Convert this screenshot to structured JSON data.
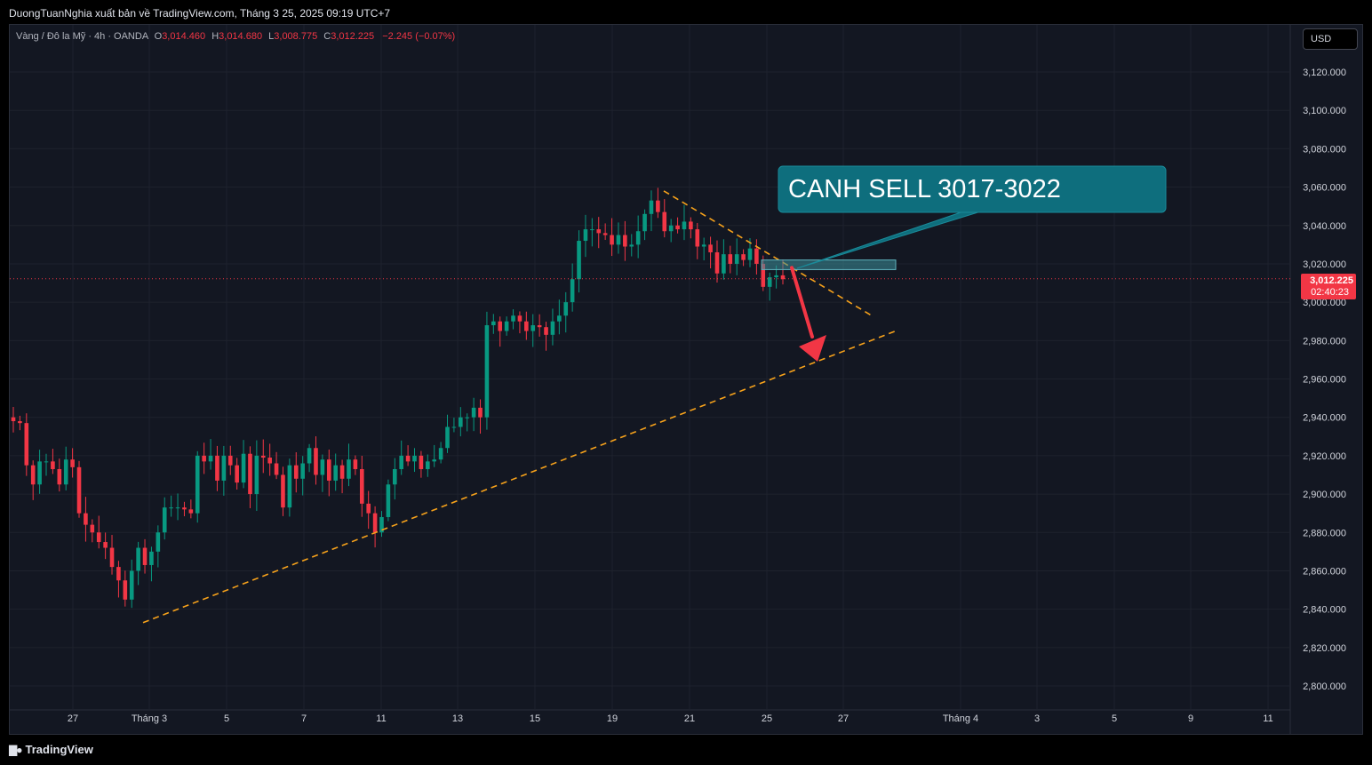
{
  "header": {
    "publisher": "DuongTuanNghia xuất bản về TradingView.com, Tháng 3 25, 2025 09:19 UTC+7"
  },
  "legend": {
    "symbol": "Vàng / Đô la Mỹ · 4h · OANDA",
    "o_label": "O",
    "o_value": "3,014.460",
    "h_label": "H",
    "h_value": "3,014.680",
    "l_label": "L",
    "l_value": "3,008.775",
    "c_label": "C",
    "c_value": "3,012.225",
    "change": "−2.245 (−0.07%)"
  },
  "currency": "USD",
  "price_axis": {
    "ticks": [
      2800,
      2820,
      2840,
      2860,
      2880,
      2900,
      2920,
      2940,
      2960,
      2980,
      3000,
      3020,
      3040,
      3060,
      3080,
      3100,
      3120
    ],
    "tick_labels": [
      "2,800.000",
      "2,820.000",
      "2,840.000",
      "2,860.000",
      "2,880.000",
      "2,900.000",
      "2,920.000",
      "2,940.000",
      "2,960.000",
      "2,980.000",
      "3,000.000",
      "3,020.000",
      "3,040.000",
      "3,060.000",
      "3,080.000",
      "3,100.000",
      "3,120.000"
    ],
    "current_price": "3,012.225",
    "countdown": "02:40:23"
  },
  "time_axis": {
    "labels": [
      "27",
      "Tháng 3",
      "5",
      "7",
      "11",
      "13",
      "15",
      "19",
      "21",
      "25",
      "27",
      "Tháng 4",
      "3",
      "5",
      "9",
      "11"
    ]
  },
  "annotation": {
    "text": "CANH SELL 3017-3022",
    "zone_low": 3017,
    "zone_high": 3022
  },
  "footer": {
    "brand": "TradingView"
  },
  "colors": {
    "background": "#131722",
    "bull": "#089981",
    "bear": "#f23645",
    "trendline": "#f7a21b",
    "callout": "#0e6e7d",
    "zone": "#3d8f9a",
    "arrow": "#f23645"
  },
  "chart_data": {
    "type": "candlestick",
    "symbol": "XAUUSD",
    "timeframe": "4h",
    "ylim": [
      2792,
      3137
    ],
    "close_series_approx": [
      2938,
      2937,
      2915,
      2905,
      2917,
      2917,
      2913,
      2905,
      2918,
      2914,
      2890,
      2884,
      2880,
      2875,
      2872,
      2862,
      2855,
      2845,
      2860,
      2872,
      2863,
      2870,
      2880,
      2893,
      2893,
      2893,
      2892,
      2890,
      2920,
      2917,
      2920,
      2907,
      2920,
      2915,
      2906,
      2921,
      2900,
      2920,
      2919,
      2916,
      2910,
      2893,
      2915,
      2908,
      2916,
      2924,
      2910,
      2918,
      2907,
      2915,
      2908,
      2918,
      2913,
      2895,
      2890,
      2880,
      2888,
      2905,
      2913,
      2920,
      2917,
      2920,
      2913,
      2917,
      2918,
      2924,
      2935,
      2935,
      2940,
      2940,
      2945,
      2940,
      2988,
      2990,
      2985,
      2990,
      2993,
      2990,
      2985,
      2988,
      2987,
      2983,
      2990,
      2993,
      3000,
      3012,
      3032,
      3038,
      3038,
      3036,
      3035,
      3030,
      3035,
      3029,
      3030,
      3037,
      3046,
      3053,
      3047,
      3037,
      3040,
      3038,
      3042,
      3038,
      3029,
      3030,
      3026,
      3015,
      3025,
      3020,
      3025,
      3022,
      3028,
      3020,
      3008,
      3013,
      3014,
      3012
    ],
    "trendlines": [
      {
        "kind": "support",
        "from": {
          "date": "2025-02-28",
          "price": 2833
        },
        "to": {
          "date": "2025-03-28",
          "price": 2985
        }
      },
      {
        "kind": "resistance",
        "from": {
          "date": "2025-03-20",
          "price": 3058
        },
        "to": {
          "date": "2025-03-27",
          "price": 2993
        }
      }
    ],
    "projected_arrow": {
      "from_price": 3020,
      "to_price": 2970
    }
  }
}
